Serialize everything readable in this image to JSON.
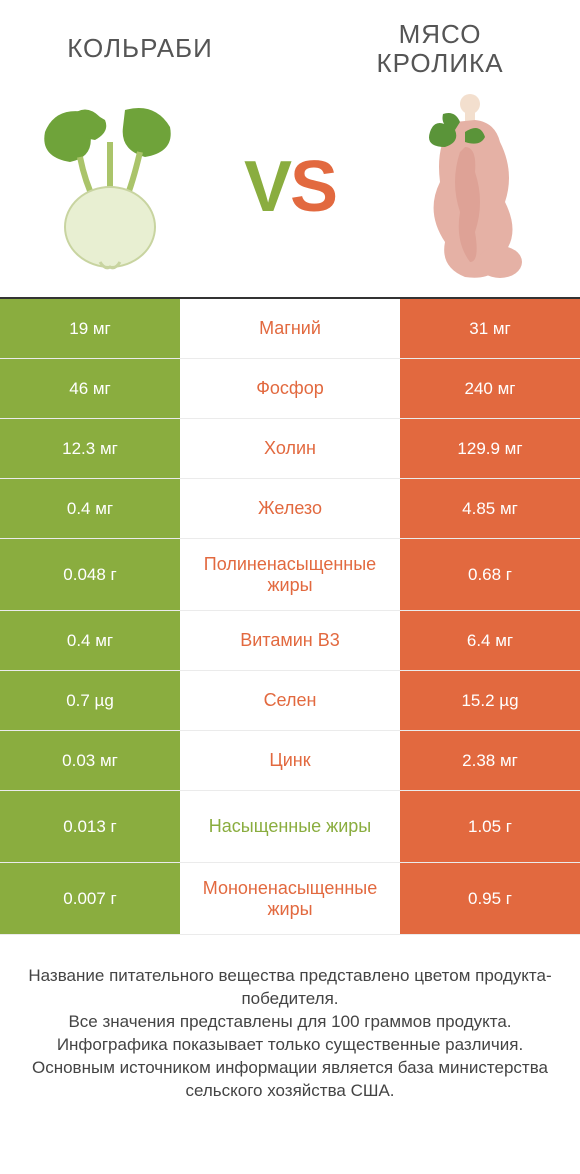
{
  "colors": {
    "left_bg": "#8aad3f",
    "right_bg": "#e2693f",
    "left_text": "#8aad3f",
    "right_text": "#e2693f",
    "value_text": "#ffffff",
    "title_text": "#555555",
    "border_top": "#333333"
  },
  "header": {
    "left_title": "КОЛЬРАБИ",
    "right_title": "МЯСО КРОЛИКА"
  },
  "vs": {
    "v": "V",
    "s": "S"
  },
  "rows": [
    {
      "label": "Магний",
      "left": "19 мг",
      "right": "31 мг",
      "winner": "right",
      "tall": false
    },
    {
      "label": "Фосфор",
      "left": "46 мг",
      "right": "240 мг",
      "winner": "right",
      "tall": false
    },
    {
      "label": "Холин",
      "left": "12.3 мг",
      "right": "129.9 мг",
      "winner": "right",
      "tall": false
    },
    {
      "label": "Железо",
      "left": "0.4 мг",
      "right": "4.85 мг",
      "winner": "right",
      "tall": false
    },
    {
      "label": "Полиненасыщенные жиры",
      "left": "0.048 г",
      "right": "0.68 г",
      "winner": "right",
      "tall": true
    },
    {
      "label": "Витамин B3",
      "left": "0.4 мг",
      "right": "6.4 мг",
      "winner": "right",
      "tall": false
    },
    {
      "label": "Селен",
      "left": "0.7 µg",
      "right": "15.2 µg",
      "winner": "right",
      "tall": false
    },
    {
      "label": "Цинк",
      "left": "0.03 мг",
      "right": "2.38 мг",
      "winner": "right",
      "tall": false
    },
    {
      "label": "Насыщенные жиры",
      "left": "0.013 г",
      "right": "1.05 г",
      "winner": "left",
      "tall": true
    },
    {
      "label": "Мононенасыщенные жиры",
      "left": "0.007 г",
      "right": "0.95 г",
      "winner": "right",
      "tall": true
    }
  ],
  "footnote": {
    "line1": "Название питательного вещества представлено цветом продукта-победителя.",
    "line2": "Все значения представлены для 100 граммов продукта.",
    "line3": "Инфографика показывает только существенные различия.",
    "line4": "Основным источником информации является база министерства сельского хозяйства США."
  }
}
